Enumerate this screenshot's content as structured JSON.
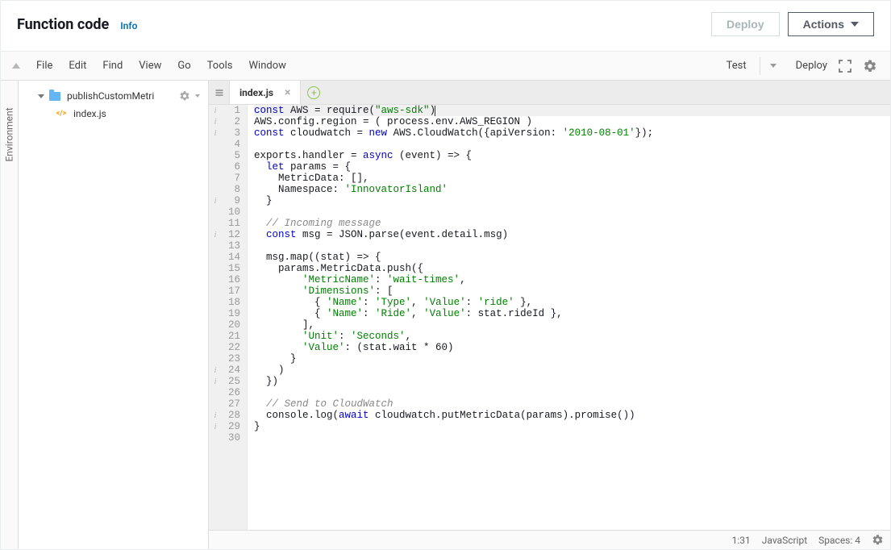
{
  "header": {
    "title": "Function code",
    "info": "Info",
    "deploy": "Deploy",
    "actions": "Actions"
  },
  "menubar": {
    "items": [
      "File",
      "Edit",
      "Find",
      "View",
      "Go",
      "Tools",
      "Window"
    ],
    "test": "Test",
    "deploy": "Deploy"
  },
  "sidebar": {
    "label": "Environment"
  },
  "tree": {
    "folder": "publishCustomMetri",
    "file": "index.js"
  },
  "tab": {
    "name": "index.js"
  },
  "code": {
    "info_markers": [
      1,
      2,
      3,
      9,
      12,
      24,
      25,
      28,
      29
    ],
    "lines": [
      {
        "n": 1,
        "seg": [
          {
            "c": "kw",
            "t": "const"
          },
          {
            "t": " AWS = require("
          },
          {
            "c": "str",
            "t": "\"aws-sdk\""
          },
          {
            "t": ")"
          }
        ],
        "cursor": true,
        "hl": true
      },
      {
        "n": 2,
        "seg": [
          {
            "t": "AWS.config.region = ( process.env.AWS_REGION )"
          }
        ]
      },
      {
        "n": 3,
        "seg": [
          {
            "c": "kw",
            "t": "const"
          },
          {
            "t": " cloudwatch = "
          },
          {
            "c": "kw",
            "t": "new"
          },
          {
            "t": " AWS.CloudWatch({apiVersion: "
          },
          {
            "c": "str",
            "t": "'2010-08-01'"
          },
          {
            "t": "});"
          }
        ]
      },
      {
        "n": 4,
        "seg": []
      },
      {
        "n": 5,
        "seg": [
          {
            "t": "exports.handler = "
          },
          {
            "c": "kw",
            "t": "async"
          },
          {
            "t": " (event) => {"
          }
        ]
      },
      {
        "n": 6,
        "seg": [
          {
            "t": "  "
          },
          {
            "c": "kw",
            "t": "let"
          },
          {
            "t": " params = {"
          }
        ]
      },
      {
        "n": 7,
        "seg": [
          {
            "t": "    MetricData: [],"
          }
        ]
      },
      {
        "n": 8,
        "seg": [
          {
            "t": "    Namespace: "
          },
          {
            "c": "str",
            "t": "'InnovatorIsland'"
          }
        ]
      },
      {
        "n": 9,
        "seg": [
          {
            "t": "  }"
          }
        ]
      },
      {
        "n": 10,
        "seg": []
      },
      {
        "n": 11,
        "seg": [
          {
            "t": "  "
          },
          {
            "c": "com",
            "t": "// Incoming message"
          }
        ]
      },
      {
        "n": 12,
        "seg": [
          {
            "t": "  "
          },
          {
            "c": "kw",
            "t": "const"
          },
          {
            "t": " msg = JSON.parse(event.detail.msg)"
          }
        ]
      },
      {
        "n": 13,
        "seg": []
      },
      {
        "n": 14,
        "seg": [
          {
            "t": "  msg.map((stat) => {"
          }
        ]
      },
      {
        "n": 15,
        "seg": [
          {
            "t": "    params.MetricData.push({"
          }
        ]
      },
      {
        "n": 16,
        "seg": [
          {
            "t": "        "
          },
          {
            "c": "str",
            "t": "'MetricName'"
          },
          {
            "t": ": "
          },
          {
            "c": "str",
            "t": "'wait-times'"
          },
          {
            "t": ","
          }
        ]
      },
      {
        "n": 17,
        "seg": [
          {
            "t": "        "
          },
          {
            "c": "str",
            "t": "'Dimensions'"
          },
          {
            "t": ": ["
          }
        ]
      },
      {
        "n": 18,
        "seg": [
          {
            "t": "          { "
          },
          {
            "c": "str",
            "t": "'Name'"
          },
          {
            "t": ": "
          },
          {
            "c": "str",
            "t": "'Type'"
          },
          {
            "t": ", "
          },
          {
            "c": "str",
            "t": "'Value'"
          },
          {
            "t": ": "
          },
          {
            "c": "str",
            "t": "'ride'"
          },
          {
            "t": " },"
          }
        ]
      },
      {
        "n": 19,
        "seg": [
          {
            "t": "          { "
          },
          {
            "c": "str",
            "t": "'Name'"
          },
          {
            "t": ": "
          },
          {
            "c": "str",
            "t": "'Ride'"
          },
          {
            "t": ", "
          },
          {
            "c": "str",
            "t": "'Value'"
          },
          {
            "t": ": stat.rideId },"
          }
        ]
      },
      {
        "n": 20,
        "seg": [
          {
            "t": "        ],"
          }
        ]
      },
      {
        "n": 21,
        "seg": [
          {
            "t": "        "
          },
          {
            "c": "str",
            "t": "'Unit'"
          },
          {
            "t": ": "
          },
          {
            "c": "str",
            "t": "'Seconds'"
          },
          {
            "t": ","
          }
        ]
      },
      {
        "n": 22,
        "seg": [
          {
            "t": "        "
          },
          {
            "c": "str",
            "t": "'Value'"
          },
          {
            "t": ": (stat.wait * 60)"
          }
        ]
      },
      {
        "n": 23,
        "seg": [
          {
            "t": "      }"
          }
        ]
      },
      {
        "n": 24,
        "seg": [
          {
            "t": "    )"
          }
        ]
      },
      {
        "n": 25,
        "seg": [
          {
            "t": "  })"
          }
        ]
      },
      {
        "n": 26,
        "seg": []
      },
      {
        "n": 27,
        "seg": [
          {
            "t": "  "
          },
          {
            "c": "com",
            "t": "// Send to CloudWatch"
          }
        ]
      },
      {
        "n": 28,
        "seg": [
          {
            "t": "  console.log("
          },
          {
            "c": "kw",
            "t": "await"
          },
          {
            "t": " cloudwatch.putMetricData(params).promise())"
          }
        ]
      },
      {
        "n": 29,
        "seg": [
          {
            "t": "}"
          }
        ]
      },
      {
        "n": 30,
        "seg": []
      }
    ]
  },
  "status": {
    "pos": "1:31",
    "lang": "JavaScript",
    "spaces": "Spaces: 4"
  }
}
